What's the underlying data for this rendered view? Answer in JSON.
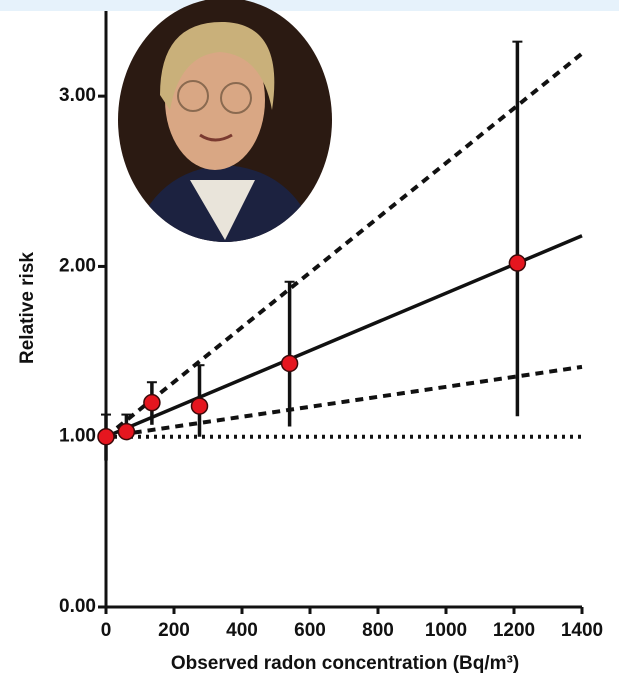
{
  "chart_data": {
    "type": "scatter",
    "xlabel": "Observed radon concentration (Bq/m³)",
    "ylabel": "Relative risk",
    "x": [
      0,
      60,
      135,
      275,
      540,
      1210
    ],
    "values": [
      1.0,
      1.03,
      1.2,
      1.18,
      1.43,
      2.02
    ],
    "ci_low": [
      0.86,
      1.0,
      1.07,
      1.0,
      1.06,
      1.12
    ],
    "ci_high": [
      1.13,
      1.13,
      1.32,
      1.42,
      1.91,
      3.32
    ],
    "color": "#e5161f",
    "lines": [
      {
        "style": "solid",
        "x": [
          0,
          1400
        ],
        "values": [
          1.0,
          2.18
        ]
      },
      {
        "style": "dashed",
        "x": [
          0,
          1400
        ],
        "values": [
          1.0,
          3.25
        ]
      },
      {
        "style": "dashed",
        "x": [
          0,
          1400
        ],
        "values": [
          1.0,
          1.41
        ]
      },
      {
        "style": "dotted",
        "x": [
          0,
          1400
        ],
        "values": [
          1.0,
          1.0
        ]
      }
    ],
    "xlim": [
      0,
      1400
    ],
    "ylim": [
      0,
      3.5
    ],
    "xticks": [
      0,
      200,
      400,
      600,
      800,
      1000,
      1200,
      1400
    ],
    "yticks": [
      {
        "value": 0,
        "label": "0.00"
      },
      {
        "value": 1,
        "label": "1.00"
      },
      {
        "value": 2,
        "label": "2.00"
      },
      {
        "value": 3,
        "label": "3.00"
      }
    ]
  }
}
